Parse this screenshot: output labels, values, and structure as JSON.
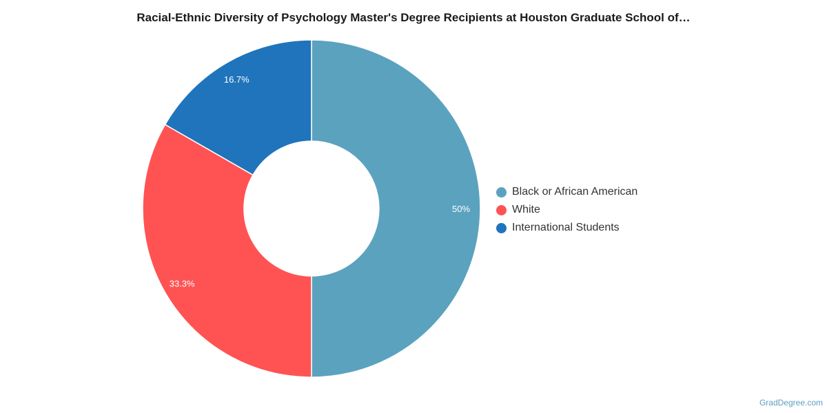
{
  "title": "Racial-Ethnic Diversity of Psychology Master's Degree Recipients at Houston Graduate School of…",
  "watermark": "GradDegree.com",
  "chart_data": {
    "type": "pie",
    "style": "donut",
    "title": "Racial-Ethnic Diversity of Psychology Master's Degree Recipients at Houston Graduate School of…",
    "categories": [
      "Black or African American",
      "White",
      "International Students"
    ],
    "values": [
      50,
      33.3,
      16.7
    ],
    "data_labels": [
      "50%",
      "33.3%",
      "16.7%"
    ],
    "colors": [
      "#5ba2bf",
      "#ff5353",
      "#1f74bb"
    ],
    "legend_position": "right"
  }
}
